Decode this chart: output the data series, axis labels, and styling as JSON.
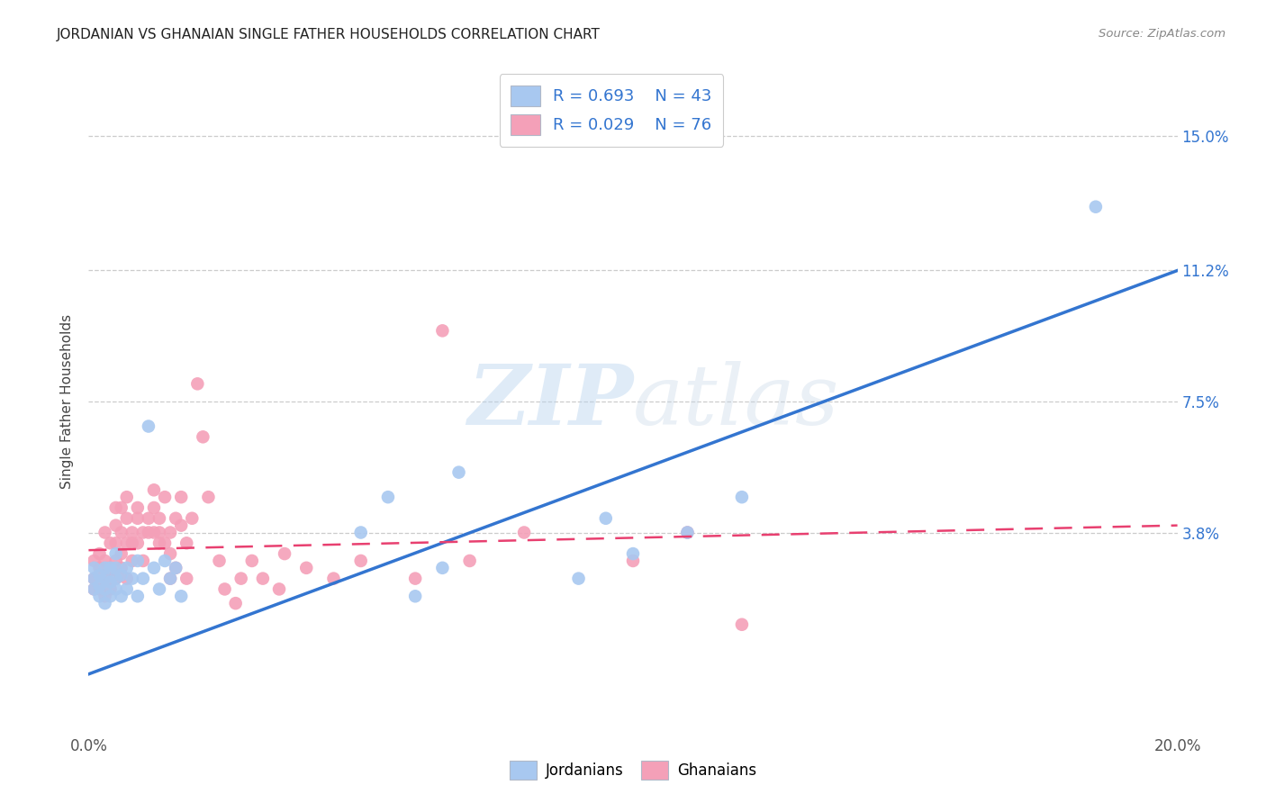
{
  "title": "JORDANIAN VS GHANAIAN SINGLE FATHER HOUSEHOLDS CORRELATION CHART",
  "source": "Source: ZipAtlas.com",
  "ylabel": "Single Father Households",
  "ytick_labels": [
    "15.0%",
    "11.2%",
    "7.5%",
    "3.8%"
  ],
  "ytick_values": [
    0.15,
    0.112,
    0.075,
    0.038
  ],
  "xmin": 0.0,
  "xmax": 0.2,
  "ymin": -0.018,
  "ymax": 0.168,
  "legend_r_jordan": "R = 0.693",
  "legend_n_jordan": "N = 43",
  "legend_r_ghana": "R = 0.029",
  "legend_n_ghana": "N = 76",
  "jordan_color": "#a8c8f0",
  "ghana_color": "#f4a0b8",
  "jordan_line_color": "#3375d0",
  "ghana_line_color": "#e84070",
  "watermark_zip": "ZIP",
  "watermark_atlas": "atlas",
  "background_color": "#ffffff",
  "jordan_x": [
    0.001,
    0.001,
    0.001,
    0.002,
    0.002,
    0.002,
    0.003,
    0.003,
    0.003,
    0.003,
    0.004,
    0.004,
    0.004,
    0.005,
    0.005,
    0.005,
    0.005,
    0.006,
    0.006,
    0.007,
    0.007,
    0.008,
    0.009,
    0.009,
    0.01,
    0.011,
    0.012,
    0.013,
    0.014,
    0.015,
    0.016,
    0.017,
    0.05,
    0.055,
    0.06,
    0.065,
    0.068,
    0.09,
    0.095,
    0.1,
    0.11,
    0.12,
    0.185
  ],
  "jordan_y": [
    0.025,
    0.022,
    0.028,
    0.02,
    0.023,
    0.026,
    0.022,
    0.025,
    0.018,
    0.028,
    0.02,
    0.024,
    0.028,
    0.022,
    0.025,
    0.028,
    0.032,
    0.02,
    0.026,
    0.022,
    0.028,
    0.025,
    0.02,
    0.03,
    0.025,
    0.068,
    0.028,
    0.022,
    0.03,
    0.025,
    0.028,
    0.02,
    0.038,
    0.048,
    0.02,
    0.028,
    0.055,
    0.025,
    0.042,
    0.032,
    0.038,
    0.048,
    0.13
  ],
  "ghana_x": [
    0.001,
    0.001,
    0.001,
    0.002,
    0.002,
    0.002,
    0.003,
    0.003,
    0.003,
    0.003,
    0.004,
    0.004,
    0.004,
    0.004,
    0.005,
    0.005,
    0.005,
    0.005,
    0.005,
    0.006,
    0.006,
    0.006,
    0.006,
    0.007,
    0.007,
    0.007,
    0.007,
    0.008,
    0.008,
    0.008,
    0.009,
    0.009,
    0.009,
    0.01,
    0.01,
    0.011,
    0.011,
    0.012,
    0.012,
    0.012,
    0.013,
    0.013,
    0.013,
    0.014,
    0.014,
    0.015,
    0.015,
    0.015,
    0.016,
    0.016,
    0.017,
    0.017,
    0.018,
    0.018,
    0.019,
    0.02,
    0.021,
    0.022,
    0.024,
    0.025,
    0.027,
    0.028,
    0.03,
    0.032,
    0.035,
    0.036,
    0.04,
    0.045,
    0.05,
    0.06,
    0.065,
    0.07,
    0.08,
    0.1,
    0.11,
    0.12
  ],
  "ghana_y": [
    0.025,
    0.03,
    0.022,
    0.028,
    0.032,
    0.022,
    0.025,
    0.03,
    0.038,
    0.02,
    0.025,
    0.028,
    0.035,
    0.022,
    0.03,
    0.025,
    0.035,
    0.04,
    0.045,
    0.028,
    0.032,
    0.038,
    0.045,
    0.025,
    0.042,
    0.048,
    0.035,
    0.035,
    0.038,
    0.03,
    0.045,
    0.035,
    0.042,
    0.03,
    0.038,
    0.042,
    0.038,
    0.045,
    0.05,
    0.038,
    0.035,
    0.042,
    0.038,
    0.048,
    0.035,
    0.038,
    0.032,
    0.025,
    0.028,
    0.042,
    0.04,
    0.048,
    0.035,
    0.025,
    0.042,
    0.08,
    0.065,
    0.048,
    0.03,
    0.022,
    0.018,
    0.025,
    0.03,
    0.025,
    0.022,
    0.032,
    0.028,
    0.025,
    0.03,
    0.025,
    0.095,
    0.03,
    0.038,
    0.03,
    0.038,
    0.012
  ],
  "jordan_line_x": [
    0.0,
    0.2
  ],
  "jordan_line_y": [
    -0.002,
    0.112
  ],
  "ghana_line_x": [
    0.0,
    0.2
  ],
  "ghana_line_y": [
    0.033,
    0.04
  ]
}
